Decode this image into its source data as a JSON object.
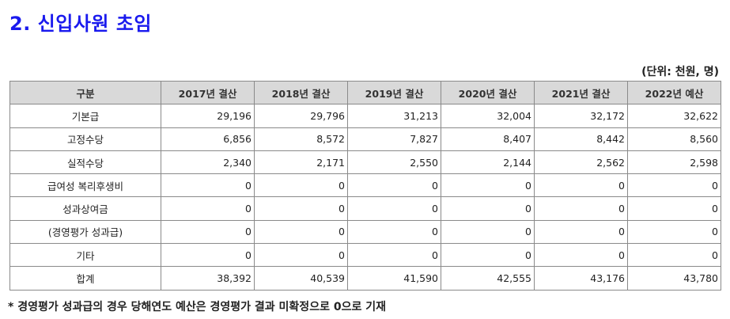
{
  "title": "2. 신입사원 초임",
  "unit": "(단위: 천원, 명)",
  "table": {
    "headers": [
      "구분",
      "2017년 결산",
      "2018년 결산",
      "2019년 결산",
      "2020년 결산",
      "2021년 결산",
      "2022년 예산"
    ],
    "rows": [
      {
        "label": "기본급",
        "values": [
          "29,196",
          "29,796",
          "31,213",
          "32,004",
          "32,172",
          "32,622"
        ]
      },
      {
        "label": "고정수당",
        "values": [
          "6,856",
          "8,572",
          "7,827",
          "8,407",
          "8,442",
          "8,560"
        ]
      },
      {
        "label": "실적수당",
        "values": [
          "2,340",
          "2,171",
          "2,550",
          "2,144",
          "2,562",
          "2,598"
        ]
      },
      {
        "label": "급여성 복리후생비",
        "values": [
          "0",
          "0",
          "0",
          "0",
          "0",
          "0"
        ]
      },
      {
        "label": "성과상여금",
        "values": [
          "0",
          "0",
          "0",
          "0",
          "0",
          "0"
        ]
      },
      {
        "label": "(경영평가 성과급)",
        "values": [
          "0",
          "0",
          "0",
          "0",
          "0",
          "0"
        ]
      },
      {
        "label": "기타",
        "values": [
          "0",
          "0",
          "0",
          "0",
          "0",
          "0"
        ]
      },
      {
        "label": "합계",
        "values": [
          "38,392",
          "40,539",
          "41,590",
          "42,555",
          "43,176",
          "43,780"
        ]
      }
    ]
  },
  "note": "* 경영평가 성과급의 경우 당해연도 예산은 경영평가 결과 미확정으로 0으로 기재"
}
